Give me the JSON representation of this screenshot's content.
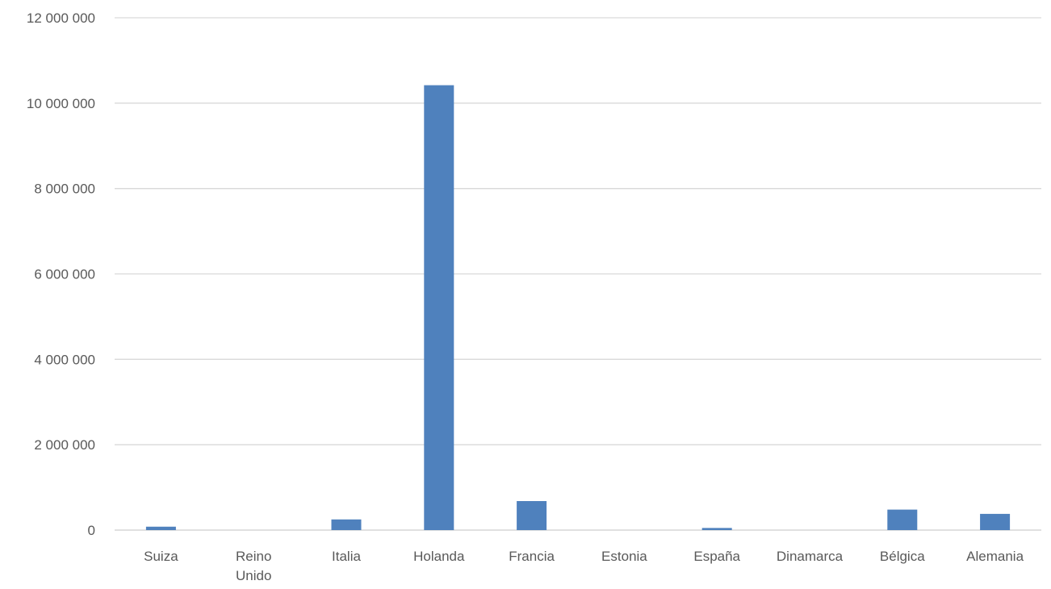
{
  "chart_data": {
    "type": "bar",
    "categories": [
      "Suiza",
      "Reino Unido",
      "Italia",
      "Holanda",
      "Francia",
      "Estonia",
      "España",
      "Dinamarca",
      "Bélgica",
      "Alemania"
    ],
    "category_label_lines": [
      [
        "Suiza"
      ],
      [
        "Reino",
        "Unido"
      ],
      [
        "Italia"
      ],
      [
        "Holanda"
      ],
      [
        "Francia"
      ],
      [
        "Estonia"
      ],
      [
        "España"
      ],
      [
        "Dinamarca"
      ],
      [
        "Bélgica"
      ],
      [
        "Alemania"
      ]
    ],
    "values": [
      80000,
      0,
      250000,
      10420000,
      680000,
      0,
      50000,
      0,
      480000,
      380000
    ],
    "ylim": [
      0,
      12000000
    ],
    "y_ticks": [
      0,
      2000000,
      4000000,
      6000000,
      8000000,
      10000000,
      12000000
    ],
    "y_tick_labels": [
      "0",
      "2 000 000",
      "4 000 000",
      "6 000 000",
      "8 000 000",
      "10 000 000",
      "12 000 000"
    ],
    "title": "",
    "xlabel": "",
    "ylabel": "",
    "grid": true,
    "legend": "none",
    "colors": {
      "bar": "#4F81BD",
      "grid": "#D9D9D9",
      "text": "#595959"
    }
  }
}
